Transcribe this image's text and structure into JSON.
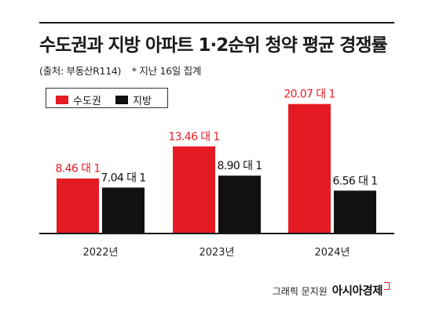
{
  "header": {
    "title": "수도권과 지방 아파트  1·2순위 청약 평균 경쟁률",
    "source": "(출처: 부동산R114)",
    "note": "* 지난 16일 집계"
  },
  "footer": {
    "credit": "그래픽 문지원",
    "brand": "아시아경제"
  },
  "colors": {
    "capital": "#e41b22",
    "provinces": "#111111",
    "capital_label": "#e41b22",
    "provinces_label": "#111111"
  },
  "chart_data": {
    "type": "bar",
    "title": "수도권과 지방 아파트  1·2순위 청약 평균 경쟁률",
    "categories": [
      "2022년",
      "2023년",
      "2024년"
    ],
    "value_suffix": "대 1",
    "series": [
      {
        "name": "수도권",
        "values": [
          8.46,
          13.46,
          20.07
        ],
        "labels": [
          "8.46 대 1",
          "13.46 대 1",
          "20.07 대 1"
        ]
      },
      {
        "name": "지방",
        "values": [
          7.04,
          8.9,
          6.56
        ],
        "labels": [
          "7.04 대 1",
          "8.90 대 1",
          "6.56 대 1"
        ]
      }
    ],
    "ylim": [
      0,
      21.5
    ],
    "grid": false,
    "legend": "top-left"
  }
}
